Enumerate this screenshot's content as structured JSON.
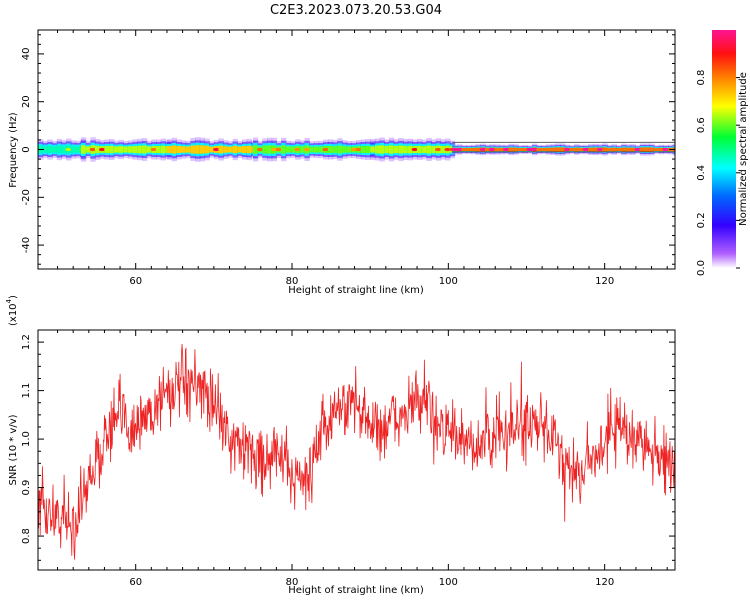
{
  "title": "C2E3.2023.073.20.53.G04",
  "colors": {
    "snr_line": "#ee2222",
    "spectrogram_low": "#ffffff",
    "spectrogram_high": "#ff1493",
    "reference_line": "#444444"
  },
  "chart_data": [
    {
      "type": "heatmap",
      "xlabel": "Height of straight line (km)",
      "ylabel": "Frequency (Hz)",
      "xlim": [
        47.5,
        129
      ],
      "ylim": [
        -50,
        50
      ],
      "x_ticks": [
        60,
        80,
        100,
        120
      ],
      "y_ticks": [
        -40,
        -20,
        0,
        20,
        40
      ],
      "colorbar": {
        "label": "Normalized spectral amplitude",
        "range": [
          0,
          1
        ],
        "ticks": [
          "0.0",
          "0.2",
          "0.4",
          "0.6",
          "0.8"
        ],
        "colormap": "rainbow (purple-blue-cyan-green-yellow-orange-red-pink)"
      },
      "band": {
        "center_frequency_hz": 0,
        "reference_lines_hz": [
          -1,
          3
        ],
        "segments": [
          {
            "x_range": [
              47.5,
              53
            ],
            "half_width_hz": 4,
            "peak_amplitude": 0.55
          },
          {
            "x_range": [
              53,
              64
            ],
            "half_width_hz": 4,
            "peak_amplitude": 0.75
          },
          {
            "x_range": [
              64,
              75
            ],
            "half_width_hz": 4,
            "peak_amplitude": 0.85
          },
          {
            "x_range": [
              75,
              90
            ],
            "half_width_hz": 4,
            "peak_amplitude": 0.7
          },
          {
            "x_range": [
              90,
              100.5
            ],
            "half_width_hz": 4,
            "peak_amplitude": 0.75
          },
          {
            "x_range": [
              100.5,
              129
            ],
            "half_width_hz": 2,
            "peak_amplitude": 0.95
          }
        ]
      },
      "grid": false
    },
    {
      "type": "line",
      "xlabel": "Height of straight line (km)",
      "ylabel": "SNR (10 * v/v)",
      "y_multiplier_label": "(x10",
      "y_multiplier_exponent": "4",
      "y_multiplier_close": ")",
      "xlim": [
        47.5,
        129
      ],
      "ylim": [
        0.73,
        1.225
      ],
      "x_ticks": [
        60,
        80,
        100,
        120
      ],
      "y_ticks": [
        "0.8",
        "0.9",
        "1.0",
        "1.1",
        "1.2"
      ],
      "trend": {
        "x": [
          47.5,
          50,
          52,
          54,
          56,
          58,
          60,
          62,
          64,
          66,
          68,
          70,
          72,
          74,
          76,
          78,
          80,
          82,
          84,
          86,
          88,
          90,
          92,
          94,
          96,
          98,
          100,
          102,
          104,
          106,
          108,
          110,
          112,
          114,
          116,
          118,
          120,
          122,
          124,
          126,
          128,
          129
        ],
        "y": [
          0.86,
          0.84,
          0.82,
          0.92,
          1.0,
          1.05,
          1.02,
          1.06,
          1.1,
          1.11,
          1.1,
          1.08,
          1.0,
          0.98,
          0.96,
          0.97,
          0.93,
          0.92,
          1.02,
          1.06,
          1.08,
          1.03,
          1.02,
          1.05,
          1.08,
          1.05,
          1.02,
          0.98,
          0.99,
          1.0,
          1.02,
          1.03,
          1.02,
          0.99,
          0.93,
          0.95,
          1.0,
          1.02,
          1.0,
          0.98,
          0.95,
          0.94
        ]
      },
      "noise_amplitude": 0.05,
      "sample_count": 1150,
      "grid": false
    }
  ]
}
